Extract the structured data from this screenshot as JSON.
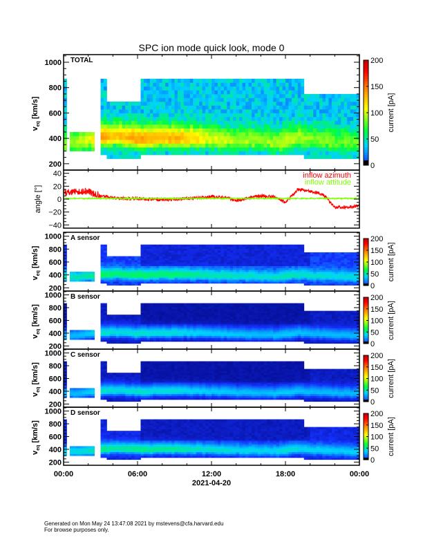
{
  "chart_data": {
    "type": "heatmap",
    "title": "SPC ion mode quick look, mode 0",
    "xlabel": "2021-04-20",
    "x_ticks": [
      "00:00",
      "06:00",
      "12:00",
      "18:00",
      "00:00"
    ],
    "xlim_hours": [
      0,
      24
    ],
    "colorbar": {
      "label": "current [pA]",
      "ticks": [
        "0",
        "50",
        "100",
        "150",
        "200"
      ],
      "range": [
        0,
        200
      ]
    },
    "speed_axis": {
      "label_main": "v",
      "label_sub": "eq",
      "label_unit": "[km/s]",
      "ticks": [
        "200",
        "400",
        "600",
        "800",
        "1000"
      ],
      "ylim": [
        150,
        1060
      ]
    },
    "time_hours": [
      0,
      1,
      2,
      3,
      4,
      5,
      6,
      7,
      8,
      9,
      10,
      11,
      12,
      13,
      14,
      15,
      16,
      17,
      18,
      19,
      20,
      21,
      22,
      23,
      24
    ],
    "core_speed_kms": [
      360,
      360,
      380,
      400,
      410,
      400,
      390,
      395,
      400,
      400,
      400,
      395,
      390,
      385,
      380,
      375,
      370,
      365,
      380,
      400,
      385,
      380,
      370,
      365,
      360
    ],
    "coverage": [
      {
        "t": [
          0.1,
          0.3
        ],
        "v": [
          300,
          880
        ]
      },
      {
        "t": [
          0.55,
          2.45
        ],
        "v": [
          290,
          450
        ]
      },
      {
        "t": [
          2.45,
          2.6
        ],
        "v": [
          280,
          880
        ]
      },
      {
        "t": [
          2.9,
          3.5
        ],
        "v": [
          280,
          880
        ]
      },
      {
        "t": [
          3.5,
          6.3
        ],
        "v": [
          250,
          690
        ]
      },
      {
        "t": [
          6.3,
          19.5
        ],
        "v": [
          260,
          880
        ]
      },
      {
        "t": [
          19.5,
          24
        ],
        "v": [
          250,
          760
        ]
      }
    ],
    "panels": [
      {
        "label": "TOTAL",
        "peak_current_pA": [
          40,
          40,
          50,
          90,
          70,
          80,
          90,
          80,
          80,
          80,
          70,
          60,
          50,
          45,
          40,
          40,
          35,
          40,
          50,
          40,
          35,
          35,
          30,
          30,
          30
        ],
        "background_pA": 18
      },
      {
        "label": "A sensor",
        "peak_current_pA": [
          20,
          20,
          22,
          28,
          25,
          26,
          28,
          26,
          26,
          26,
          24,
          22,
          20,
          20,
          18,
          18,
          17,
          18,
          20,
          18,
          17,
          17,
          16,
          16,
          16
        ],
        "background_pA": 5
      },
      {
        "label": "B sensor",
        "peak_current_pA": [
          14,
          14,
          16,
          22,
          20,
          20,
          22,
          20,
          20,
          20,
          18,
          17,
          16,
          16,
          15,
          15,
          14,
          15,
          16,
          15,
          14,
          14,
          14,
          14,
          14
        ],
        "background_pA": 1.5
      },
      {
        "label": "C sensor",
        "peak_current_pA": [
          14,
          14,
          16,
          22,
          20,
          20,
          22,
          20,
          20,
          20,
          18,
          17,
          16,
          16,
          15,
          15,
          14,
          15,
          16,
          15,
          14,
          14,
          14,
          14,
          14
        ],
        "background_pA": 1.5
      },
      {
        "label": "D sensor",
        "peak_current_pA": [
          18,
          18,
          20,
          26,
          23,
          24,
          26,
          24,
          24,
          24,
          22,
          20,
          19,
          19,
          17,
          17,
          16,
          17,
          19,
          17,
          16,
          16,
          15,
          15,
          15
        ],
        "background_pA": 3
      }
    ],
    "angle_panel": {
      "ylabel": "angle [°]",
      "ticks": [
        "-40",
        "-20",
        "0",
        "20",
        "40"
      ],
      "ylim": [
        -45,
        45
      ],
      "series": [
        {
          "name": "inflow azimuth",
          "color": "#ff0000",
          "values": [
            10,
            12,
            12,
            5,
            2,
            1,
            1,
            0,
            -1,
            0,
            1,
            2,
            4,
            3,
            -2,
            2,
            5,
            4,
            -5,
            15,
            12,
            8,
            -12,
            -13,
            -10
          ]
        },
        {
          "name": "inflow attitude",
          "color": "#7fff00",
          "values": [
            1,
            1,
            1,
            1,
            1,
            1,
            1,
            1,
            1,
            1,
            1,
            1,
            1,
            1,
            1,
            1,
            1,
            1,
            1,
            1,
            1,
            1,
            1,
            1,
            1
          ]
        }
      ]
    }
  },
  "footer": {
    "line1": "Generated on Mon May 24 13:47:08 2021 by mstevens@cfa.harvard.edu",
    "line2": "For browse purposes only."
  }
}
